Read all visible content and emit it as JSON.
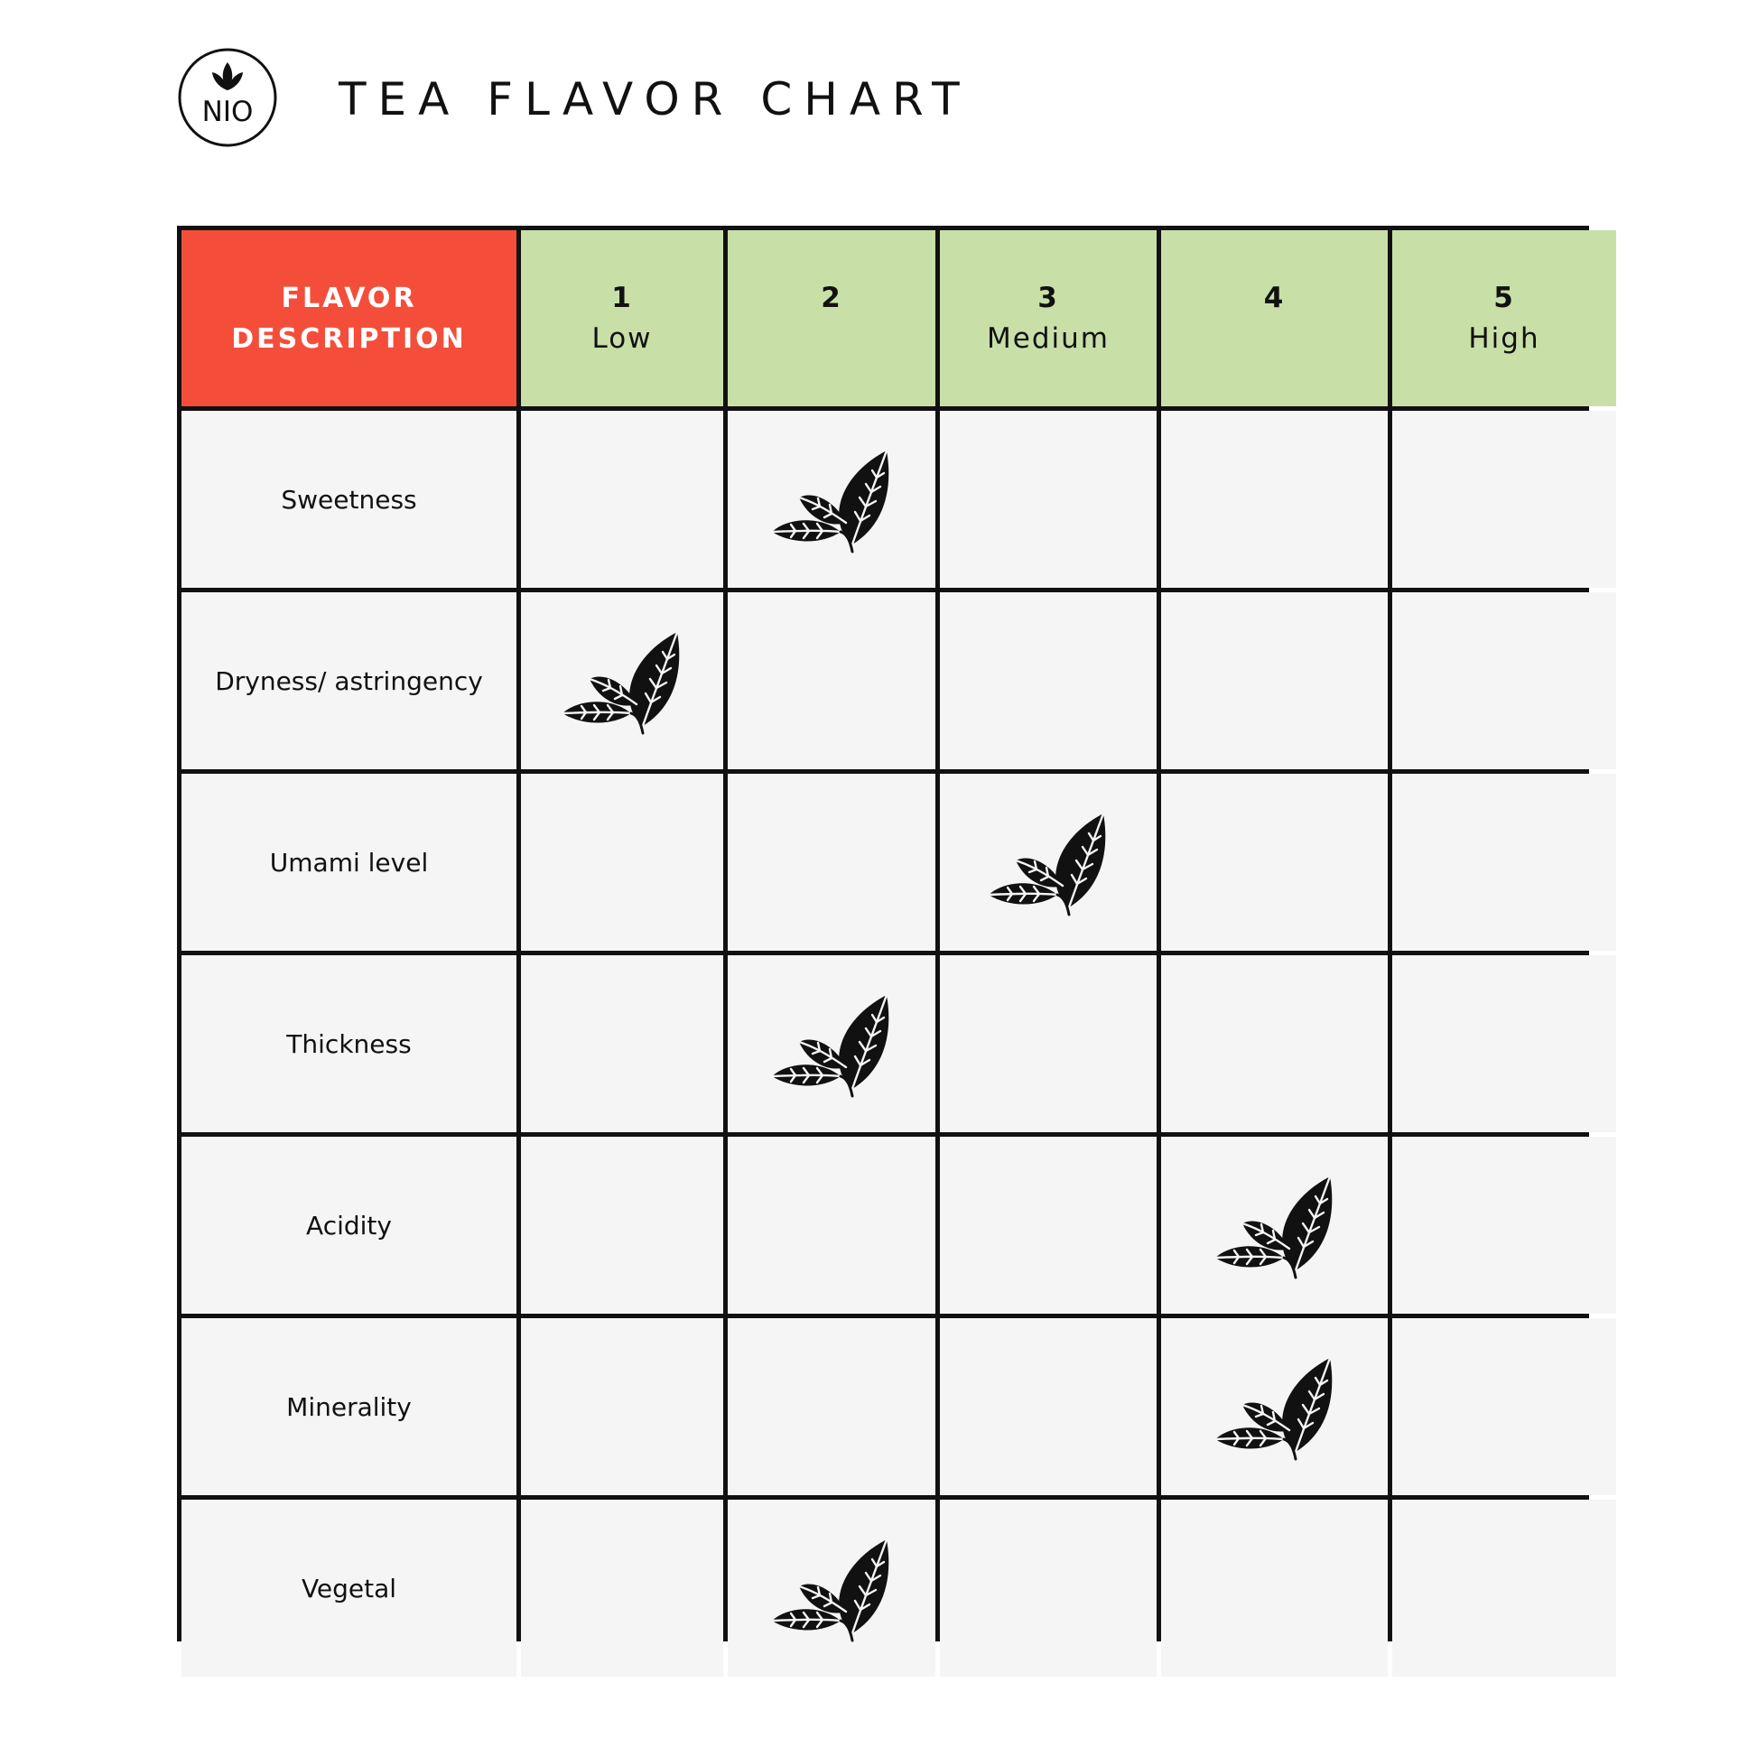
{
  "header": {
    "logo_text": "NIO",
    "title": "TEA FLAVOR CHART"
  },
  "colors": {
    "header_flavor_bg": "#f44e3b",
    "header_level_bg": "#c9dfa8",
    "cell_bg": "#f5f5f5",
    "grid_lines": "#111111"
  },
  "chart_data": {
    "type": "table",
    "title": "TEA FLAVOR CHART",
    "row_header": "FLAVOR DESCRIPTION",
    "columns": [
      {
        "number": "1",
        "label": "Low"
      },
      {
        "number": "2",
        "label": ""
      },
      {
        "number": "3",
        "label": "Medium"
      },
      {
        "number": "4",
        "label": ""
      },
      {
        "number": "5",
        "label": "High"
      }
    ],
    "rows": [
      {
        "flavor": "Sweetness",
        "level": 2
      },
      {
        "flavor": "Dryness/ astringency",
        "level": 1
      },
      {
        "flavor": "Umami level",
        "level": 3
      },
      {
        "flavor": "Thickness",
        "level": 2
      },
      {
        "flavor": "Acidity",
        "level": 4
      },
      {
        "flavor": "Minerality",
        "level": 4
      },
      {
        "flavor": "Vegetal",
        "level": 2
      }
    ],
    "marker_icon": "tea-leaf-icon"
  }
}
